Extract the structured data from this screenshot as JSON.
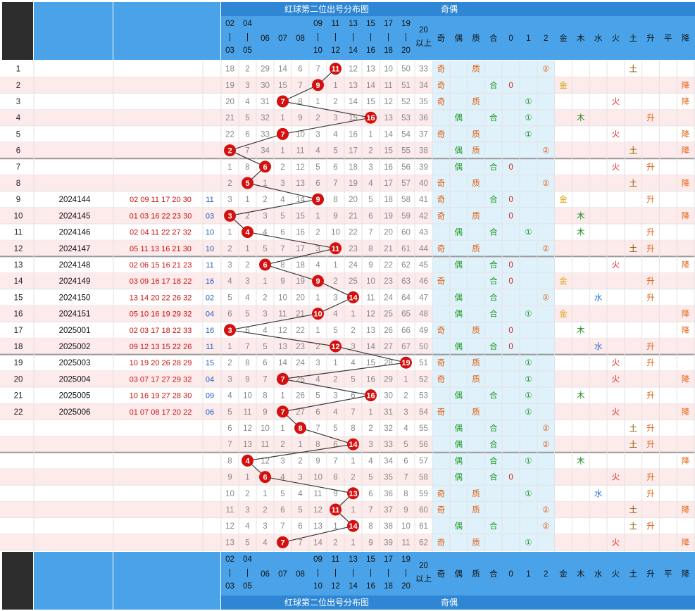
{
  "chart_data": {
    "type": "table",
    "title": "红球第二位出号分布图",
    "parity_header": "奇偶",
    "number_columns": [
      "02|03",
      "04|05",
      "06",
      "07",
      "08",
      "09|10",
      "11|12",
      "13|14",
      "15|16",
      "17|18",
      "19|20",
      "20以上"
    ],
    "stat_columns": [
      "奇",
      "偶",
      "质",
      "合",
      "0",
      "1",
      "2",
      "金",
      "木",
      "水",
      "火",
      "土",
      "升",
      "平",
      "降"
    ],
    "rows": [
      {
        "no": "1",
        "issue": "",
        "reds": "",
        "blue": "",
        "hit": 11,
        "miss": [
          18,
          2,
          29,
          14,
          6,
          7,
          null,
          12,
          13,
          10,
          50,
          33
        ],
        "parity": "奇",
        "prime": "质",
        "mod3": "②",
        "element": "土",
        "trend": ""
      },
      {
        "no": "2",
        "issue": "",
        "reds": "",
        "blue": "",
        "hit": 9,
        "miss": [
          19,
          3,
          30,
          15,
          7,
          null,
          1,
          13,
          14,
          11,
          51,
          34
        ],
        "parity": "奇",
        "prime": "合",
        "mod3": "0",
        "element": "金",
        "trend": "降"
      },
      {
        "no": "3",
        "issue": "",
        "reds": "",
        "blue": "",
        "hit": 7,
        "miss": [
          20,
          4,
          31,
          null,
          8,
          1,
          2,
          14,
          15,
          12,
          52,
          35
        ],
        "parity": "奇",
        "prime": "质",
        "mod3": "①",
        "element": "火",
        "trend": "降"
      },
      {
        "no": "4",
        "issue": "",
        "reds": "",
        "blue": "",
        "hit": 16,
        "miss": [
          21,
          5,
          32,
          1,
          9,
          2,
          3,
          15,
          null,
          13,
          53,
          36
        ],
        "parity": "偶",
        "prime": "合",
        "mod3": "①",
        "element": "木",
        "trend": "升"
      },
      {
        "no": "5",
        "issue": "",
        "reds": "",
        "blue": "",
        "hit": 7,
        "miss": [
          22,
          6,
          33,
          null,
          10,
          3,
          4,
          16,
          1,
          14,
          54,
          37
        ],
        "parity": "奇",
        "prime": "质",
        "mod3": "①",
        "element": "火",
        "trend": "降"
      },
      {
        "no": "6",
        "issue": "",
        "reds": "",
        "blue": "",
        "hit": 2,
        "miss": [
          null,
          7,
          34,
          1,
          11,
          4,
          5,
          17,
          2,
          15,
          55,
          38
        ],
        "parity": "偶",
        "prime": "质",
        "mod3": "②",
        "element": "土",
        "trend": "降"
      },
      {
        "no": "7",
        "issue": "",
        "reds": "",
        "blue": "",
        "hit": 6,
        "miss": [
          1,
          8,
          null,
          2,
          12,
          5,
          6,
          18,
          3,
          16,
          56,
          39
        ],
        "parity": "偶",
        "prime": "合",
        "mod3": "0",
        "element": "火",
        "trend": "升"
      },
      {
        "no": "8",
        "issue": "",
        "reds": "",
        "blue": "",
        "hit": 5,
        "miss": [
          2,
          null,
          1,
          3,
          13,
          6,
          7,
          19,
          4,
          17,
          57,
          40
        ],
        "parity": "奇",
        "prime": "质",
        "mod3": "②",
        "element": "土",
        "trend": "降"
      },
      {
        "no": "9",
        "issue": "2024144",
        "reds": "02 09 11 17 20 30",
        "blue": "11",
        "hit": 9,
        "miss": [
          3,
          1,
          2,
          4,
          14,
          null,
          8,
          20,
          5,
          18,
          58,
          41
        ],
        "parity": "奇",
        "prime": "合",
        "mod3": "0",
        "element": "金",
        "trend": "升"
      },
      {
        "no": "10",
        "issue": "2024145",
        "reds": "01 03 16 22 23 30",
        "blue": "03",
        "hit": 3,
        "miss": [
          null,
          2,
          3,
          5,
          15,
          1,
          9,
          21,
          6,
          19,
          59,
          42
        ],
        "parity": "奇",
        "prime": "质",
        "mod3": "0",
        "element": "木",
        "trend": "降"
      },
      {
        "no": "11",
        "issue": "2024146",
        "reds": "02 04 11 22 27 32",
        "blue": "10",
        "hit": 4,
        "miss": [
          1,
          null,
          4,
          6,
          16,
          2,
          10,
          22,
          7,
          20,
          60,
          43
        ],
        "parity": "偶",
        "prime": "合",
        "mod3": "①",
        "element": "木",
        "trend": "升"
      },
      {
        "no": "12",
        "issue": "2024147",
        "reds": "05 11 13 16 21 30",
        "blue": "10",
        "hit": 11,
        "miss": [
          2,
          1,
          5,
          7,
          17,
          3,
          null,
          23,
          8,
          21,
          61,
          44
        ],
        "parity": "奇",
        "prime": "质",
        "mod3": "②",
        "element": "土",
        "trend": "升"
      },
      {
        "no": "13",
        "issue": "2024148",
        "reds": "02 06 15 16 21 23",
        "blue": "11",
        "hit": 6,
        "miss": [
          3,
          2,
          null,
          8,
          18,
          4,
          1,
          24,
          9,
          22,
          62,
          45
        ],
        "parity": "偶",
        "prime": "合",
        "mod3": "0",
        "element": "火",
        "trend": "降"
      },
      {
        "no": "14",
        "issue": "2024149",
        "reds": "03 09 16 17 18 22",
        "blue": "16",
        "hit": 9,
        "miss": [
          4,
          3,
          1,
          9,
          19,
          null,
          2,
          25,
          10,
          23,
          63,
          46
        ],
        "parity": "奇",
        "prime": "合",
        "mod3": "0",
        "element": "金",
        "trend": "升"
      },
      {
        "no": "15",
        "issue": "2024150",
        "reds": "13 14 20 22 26 32",
        "blue": "02",
        "hit": 14,
        "miss": [
          5,
          4,
          2,
          10,
          20,
          1,
          3,
          null,
          11,
          24,
          64,
          47
        ],
        "parity": "偶",
        "prime": "合",
        "mod3": "②",
        "element": "水",
        "trend": "升"
      },
      {
        "no": "16",
        "issue": "2024151",
        "reds": "05 10 16 19 29 32",
        "blue": "04",
        "hit": 10,
        "miss": [
          6,
          5,
          3,
          11,
          21,
          null,
          4,
          1,
          12,
          25,
          65,
          48
        ],
        "parity": "偶",
        "prime": "合",
        "mod3": "①",
        "element": "金",
        "trend": "降"
      },
      {
        "no": "17",
        "issue": "2025001",
        "reds": "02 03 17 18 22 33",
        "blue": "16",
        "hit": 3,
        "miss": [
          null,
          6,
          4,
          12,
          22,
          1,
          5,
          2,
          13,
          26,
          66,
          49
        ],
        "parity": "奇",
        "prime": "质",
        "mod3": "0",
        "element": "木",
        "trend": "降"
      },
      {
        "no": "18",
        "issue": "2025002",
        "reds": "09 12 13 15 22 26",
        "blue": "11",
        "hit": 12,
        "miss": [
          1,
          7,
          5,
          13,
          23,
          2,
          null,
          3,
          14,
          27,
          67,
          50
        ],
        "parity": "偶",
        "prime": "合",
        "mod3": "0",
        "element": "水",
        "trend": "升"
      },
      {
        "no": "19",
        "issue": "2025003",
        "reds": "10 19 20 26 28 29",
        "blue": "15",
        "hit": 19,
        "miss": [
          2,
          8,
          6,
          14,
          24,
          3,
          1,
          4,
          15,
          28,
          null,
          51
        ],
        "parity": "奇",
        "prime": "质",
        "mod3": "①",
        "element": "火",
        "trend": "升"
      },
      {
        "no": "20",
        "issue": "2025004",
        "reds": "03 07 17 27 29 32",
        "blue": "04",
        "hit": 7,
        "miss": [
          3,
          9,
          7,
          null,
          25,
          4,
          2,
          5,
          16,
          29,
          1,
          52
        ],
        "parity": "奇",
        "prime": "质",
        "mod3": "①",
        "element": "火",
        "trend": "降"
      },
      {
        "no": "21",
        "issue": "2025005",
        "reds": "10 16 19 27 28 30",
        "blue": "09",
        "hit": 16,
        "miss": [
          4,
          10,
          8,
          1,
          26,
          5,
          3,
          6,
          null,
          30,
          2,
          53
        ],
        "parity": "偶",
        "prime": "合",
        "mod3": "①",
        "element": "木",
        "trend": "升"
      },
      {
        "no": "22",
        "issue": "2025006",
        "reds": "01 07 08 17 20 22",
        "blue": "06",
        "hit": 7,
        "miss": [
          5,
          11,
          9,
          null,
          27,
          6,
          4,
          7,
          1,
          31,
          3,
          54
        ],
        "parity": "奇",
        "prime": "质",
        "mod3": "①",
        "element": "火",
        "trend": "降"
      },
      {
        "no": "",
        "issue": "",
        "reds": "",
        "blue": "",
        "hit": 8,
        "miss": [
          6,
          12,
          10,
          1,
          null,
          7,
          5,
          8,
          2,
          32,
          4,
          55
        ],
        "parity": "偶",
        "prime": "合",
        "mod3": "②",
        "element": "土",
        "trend": "升"
      },
      {
        "no": "",
        "issue": "",
        "reds": "",
        "blue": "",
        "hit": 14,
        "miss": [
          7,
          13,
          11,
          2,
          1,
          8,
          6,
          null,
          3,
          33,
          5,
          56
        ],
        "parity": "偶",
        "prime": "合",
        "mod3": "②",
        "element": "土",
        "trend": "升"
      },
      {
        "no": "",
        "issue": "",
        "reds": "",
        "blue": "",
        "hit": 4,
        "miss": [
          8,
          null,
          12,
          3,
          2,
          9,
          7,
          1,
          4,
          34,
          6,
          57
        ],
        "parity": "偶",
        "prime": "合",
        "mod3": "①",
        "element": "木",
        "trend": "降"
      },
      {
        "no": "",
        "issue": "",
        "reds": "",
        "blue": "",
        "hit": 6,
        "miss": [
          9,
          1,
          null,
          4,
          3,
          10,
          8,
          2,
          5,
          35,
          7,
          58
        ],
        "parity": "偶",
        "prime": "合",
        "mod3": "0",
        "element": "火",
        "trend": "升"
      },
      {
        "no": "",
        "issue": "",
        "reds": "",
        "blue": "",
        "hit": 13,
        "miss": [
          10,
          2,
          1,
          5,
          4,
          11,
          9,
          null,
          6,
          36,
          8,
          59
        ],
        "parity": "奇",
        "prime": "质",
        "mod3": "①",
        "element": "水",
        "trend": "升"
      },
      {
        "no": "",
        "issue": "",
        "reds": "",
        "blue": "",
        "hit": 11,
        "miss": [
          11,
          3,
          2,
          6,
          5,
          12,
          null,
          1,
          7,
          37,
          9,
          60
        ],
        "parity": "奇",
        "prime": "质",
        "mod3": "②",
        "element": "土",
        "trend": "降"
      },
      {
        "no": "",
        "issue": "",
        "reds": "",
        "blue": "",
        "hit": 14,
        "miss": [
          12,
          4,
          3,
          7,
          6,
          13,
          1,
          null,
          8,
          38,
          10,
          61
        ],
        "parity": "偶",
        "prime": "合",
        "mod3": "②",
        "element": "土",
        "trend": "升"
      },
      {
        "no": "",
        "issue": "",
        "reds": "",
        "blue": "",
        "hit": 7,
        "miss": [
          13,
          5,
          4,
          null,
          7,
          14,
          2,
          1,
          9,
          39,
          11,
          62
        ],
        "parity": "奇",
        "prime": "质",
        "mod3": "①",
        "element": "火",
        "trend": "降"
      }
    ]
  },
  "colors": {
    "header_blue": "#4aa3e8",
    "header_band": "#2f86d4",
    "ball_red": "#d40f0f",
    "row_pink": "#fdeaea",
    "stat_bg": "#dff1fb",
    "odd_text": "#e06010",
    "even_text": "#1f9a1f",
    "prime_text": "#e06010",
    "composite_text": "#1f9a1f",
    "mod_text": "#1f9a1f",
    "mod2_text": "#e06010",
    "mod0_text": "#e02020"
  }
}
